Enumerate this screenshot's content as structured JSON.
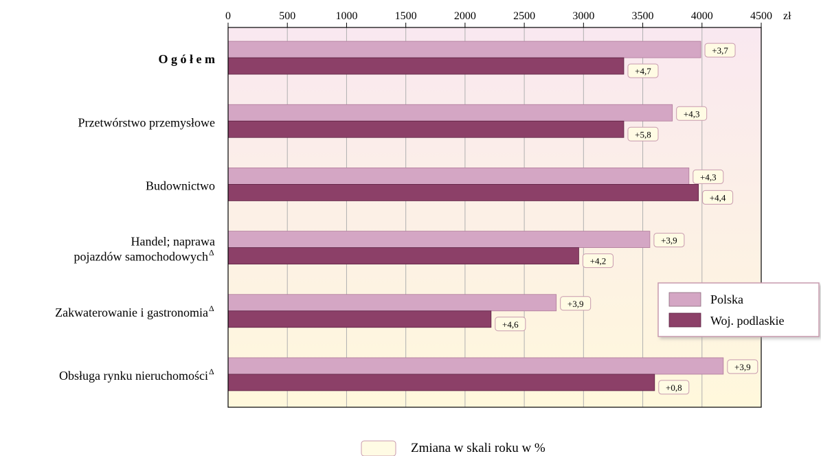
{
  "chart_data": {
    "type": "bar",
    "orientation": "horizontal",
    "unit": "zł",
    "xlim": [
      0,
      4500
    ],
    "x_ticks": [
      0,
      500,
      1000,
      1500,
      2000,
      2500,
      3000,
      3500,
      4000,
      4500
    ],
    "grid": true,
    "legend_position": "right",
    "categories": [
      "O g ó ł e m",
      "Przetwórstwo przemysłowe",
      "Budownictwo",
      "Handel; naprawa pojazdów samochodowych",
      "Zakwaterowanie i gastronomia",
      "Obsługa rynku nieruchomości"
    ],
    "category_lines": [
      [
        "O g ó ł e m"
      ],
      [
        "Przetwórstwo przemysłowe"
      ],
      [
        "Budownictwo"
      ],
      [
        "Handel; naprawa",
        "pojazdów samochodowych"
      ],
      [
        "Zakwaterowanie i gastronomia"
      ],
      [
        "Obsługa rynku nieruchomości"
      ]
    ],
    "category_marks": [
      "",
      "",
      "",
      "Δ",
      "Δ",
      "Δ"
    ],
    "series": [
      {
        "name": "Polska",
        "color": "#d4a6c4",
        "values": [
          3990,
          3750,
          3890,
          3560,
          2770,
          4180
        ],
        "change_labels": [
          "+3,7",
          "+4,3",
          "+4,3",
          "+3,9",
          "+3,9",
          "+3,9"
        ]
      },
      {
        "name": "Woj. podlaskie",
        "color": "#8c4068",
        "values": [
          3340,
          3340,
          3970,
          2960,
          2220,
          3600
        ],
        "change_labels": [
          "+4,7",
          "+5,8",
          "+4,4",
          "+4,2",
          "+4,6",
          "+0,8"
        ]
      }
    ],
    "change_legend": "Zmiana w skali roku w %",
    "colors": {
      "label_box": "#fffbe4",
      "label_box_border": "#c89aae",
      "plot_bg_top": "#f9e8f0",
      "plot_bg_bottom": "#fff8dc"
    }
  }
}
